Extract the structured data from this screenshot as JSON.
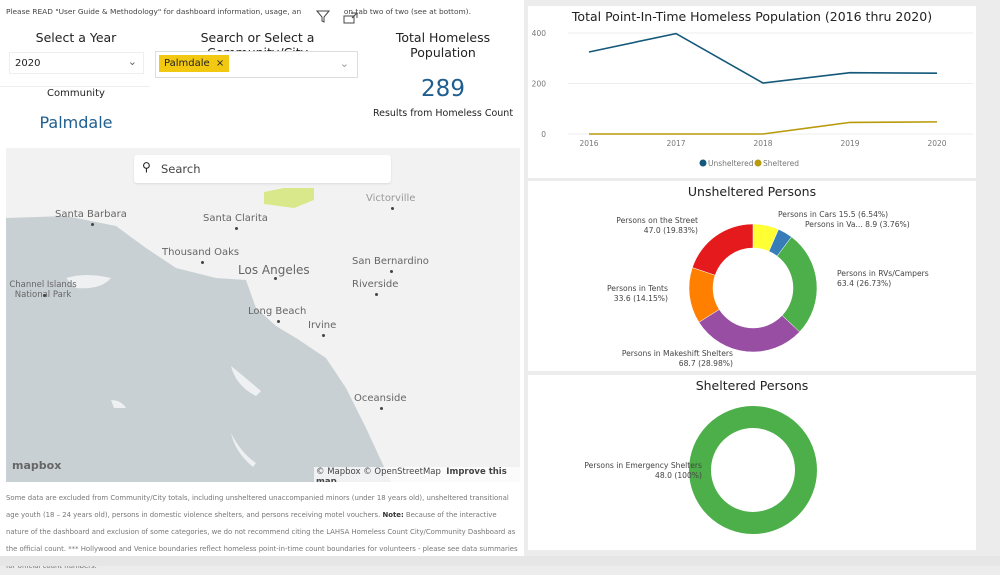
{
  "notice": "Please READ \"User Guide & Methodology\" for dashboard information, usage, an",
  "notice_tail": "on tab two of two (see at bottom).",
  "filters": {
    "year_label": "Select a Year",
    "year_value": "2020",
    "community_label": "Search or Select a Community/City",
    "community_chip": "Palmdale"
  },
  "total": {
    "label": "Total Homeless Population",
    "value": "289",
    "caption": "Results from Homeless Count"
  },
  "community": {
    "label": "Community",
    "value": "Palmdale"
  },
  "map": {
    "search_placeholder": "Search",
    "cities": [
      "Santa Barbara",
      "Santa Clarita",
      "Victorville",
      "Thousand Oaks",
      "Los Angeles",
      "San Bernardino",
      "Riverside",
      "Channel Islands National Park",
      "Long Beach",
      "Irvine",
      "Oceanside"
    ],
    "logo": "mapbox",
    "attribution": "© Mapbox © OpenStreetMap",
    "improve": "Improve this map"
  },
  "footnote_a": "Some data are excluded from Community/City totals, including unsheltered unaccompanied minors (under 18 years old), unsheltered transitional age youth (18 – 24 years old), persons in domestic violence shelters, and persons receiving motel vouchers. ",
  "footnote_note": "Note:",
  "footnote_b": " Because of the interactive nature of the dashboard and exclusion of some categories, we do not recommend citing the LAHSA Homeless Count City/Community Dashboard as the official count. *** Hollywood and Venice boundaries reflect homeless point-in-time count boundaries for volunteers - please see data summaries for official count numbers.",
  "chart_data": [
    {
      "type": "line",
      "title": "Total Point-In-Time Homeless Population (2016 thru 2020)",
      "x": [
        "2016",
        "2017",
        "2018",
        "2019",
        "2020"
      ],
      "yticks": [
        "0",
        "200",
        "400"
      ],
      "ylim": [
        0,
        420
      ],
      "grid": true,
      "legend": "bottom",
      "series": [
        {
          "name": "Unsheltered",
          "color": "#14587a",
          "values": [
            325,
            398,
            202,
            243,
            241
          ]
        },
        {
          "name": "Sheltered",
          "color": "#b89a0a",
          "values": [
            0,
            0,
            0,
            46,
            48
          ]
        }
      ]
    },
    {
      "type": "pie",
      "title": "Unsheltered Persons",
      "slices": [
        {
          "name": "Persons in Cars",
          "short": "Persons in Cars",
          "value": 15.5,
          "pct": "6.54%",
          "color": "#ffff33"
        },
        {
          "name": "Persons in Vans",
          "short": "Persons in Va...",
          "value": 8.9,
          "pct": "3.76%",
          "color": "#377eb8"
        },
        {
          "name": "Persons in RVs/Campers",
          "short": "Persons in RVs/Campers",
          "value": 63.4,
          "pct": "26.73%",
          "color": "#4daf4a"
        },
        {
          "name": "Persons in Makeshift Shelters",
          "short": "Persons in Makeshift Shelters",
          "value": 68.7,
          "pct": "28.98%",
          "color": "#984ea3"
        },
        {
          "name": "Persons in Tents",
          "short": "Persons in Tents",
          "value": 33.6,
          "pct": "14.15%",
          "color": "#ff7f00"
        },
        {
          "name": "Persons on the Street",
          "short": "Persons on the Street",
          "value": 47.0,
          "pct": "19.83%",
          "color": "#e41a1c"
        }
      ]
    },
    {
      "type": "pie",
      "title": "Sheltered Persons",
      "slices": [
        {
          "name": "Persons in Emergency Shelters",
          "short": "Persons in Emergency Shelters",
          "value": 48.0,
          "pct": "100%",
          "color": "#4daf4a"
        }
      ]
    }
  ]
}
